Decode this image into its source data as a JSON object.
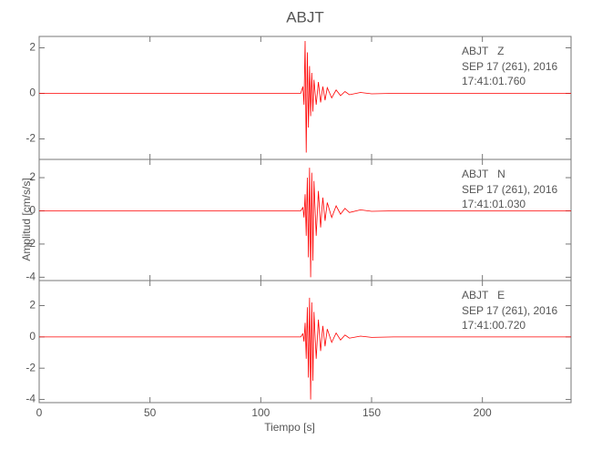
{
  "title": "ABJT",
  "xlabel": "Tiempo [s]",
  "ylabel": "Amplitud [cm/s/s]",
  "xlim": [
    0,
    240
  ],
  "xticks": [
    0,
    50,
    100,
    150,
    200
  ],
  "chart_data": [
    {
      "type": "line",
      "station": "ABJT   Z",
      "date": "SEP 17 (261), 2016",
      "time": "17:41:01.760",
      "color": "#ff0000",
      "ylim": [
        -2.9,
        2.5
      ],
      "yticks": [
        -2,
        0,
        2
      ],
      "x": [
        0,
        20,
        40,
        60,
        80,
        100,
        118,
        119,
        119.5,
        120,
        120.5,
        121,
        121.5,
        122,
        122.5,
        123,
        123.5,
        124,
        125,
        126,
        127,
        128,
        129,
        130,
        132,
        134,
        136,
        138,
        140,
        145,
        150,
        160,
        180,
        200,
        220,
        240
      ],
      "values": [
        0,
        0,
        0,
        0,
        0,
        0,
        0,
        0.3,
        -0.5,
        2.3,
        -2.6,
        1.8,
        -1.5,
        1.2,
        -1.0,
        0.9,
        -0.8,
        0.6,
        -0.5,
        0.5,
        -0.4,
        0.3,
        -0.3,
        0.25,
        -0.2,
        0.15,
        -0.1,
        0.08,
        -0.06,
        0.04,
        -0.02,
        0,
        0,
        0,
        0,
        0
      ]
    },
    {
      "type": "line",
      "station": "ABJT   N",
      "date": "SEP 17 (261), 2016",
      "time": "17:41:01.030",
      "color": "#ff0000",
      "ylim": [
        -4.2,
        3.1
      ],
      "yticks": [
        -4,
        -2,
        0,
        2
      ],
      "x": [
        0,
        20,
        40,
        60,
        80,
        100,
        118,
        119,
        119.5,
        120,
        120.5,
        121,
        121.5,
        122,
        122.5,
        123,
        123.5,
        124,
        125,
        126,
        127,
        128,
        129,
        130,
        132,
        134,
        136,
        138,
        140,
        145,
        150,
        160,
        180,
        200,
        220,
        240
      ],
      "values": [
        0,
        0,
        0,
        0,
        0,
        0,
        0,
        0.2,
        -0.4,
        1.0,
        -1.5,
        2.0,
        -2.8,
        2.6,
        -4.0,
        2.3,
        -3.0,
        1.8,
        -1.5,
        1.2,
        -1.0,
        0.8,
        -0.6,
        0.5,
        -0.4,
        0.3,
        -0.2,
        0.15,
        -0.1,
        0.06,
        -0.03,
        0,
        0,
        0,
        0,
        0
      ]
    },
    {
      "type": "line",
      "station": "ABJT   E",
      "date": "SEP 17 (261), 2016",
      "time": "17:41:00.720",
      "color": "#ff0000",
      "ylim": [
        -4.2,
        3.6
      ],
      "yticks": [
        -4,
        -2,
        0,
        2
      ],
      "x": [
        0,
        20,
        40,
        60,
        80,
        100,
        118,
        119,
        119.5,
        120,
        120.5,
        121,
        121.5,
        122,
        122.5,
        123,
        123.5,
        124,
        125,
        126,
        127,
        128,
        129,
        130,
        132,
        134,
        136,
        138,
        140,
        145,
        150,
        160,
        180,
        200,
        220,
        240
      ],
      "values": [
        0,
        0,
        0,
        0,
        0,
        0,
        0,
        0.2,
        -0.3,
        0.9,
        -1.4,
        1.9,
        -2.6,
        2.5,
        -4.0,
        2.2,
        -2.8,
        1.6,
        -1.4,
        1.1,
        -0.9,
        0.7,
        -0.6,
        0.5,
        -0.35,
        0.25,
        -0.2,
        0.12,
        -0.08,
        0.05,
        -0.03,
        0,
        0,
        0,
        0,
        0
      ]
    }
  ]
}
